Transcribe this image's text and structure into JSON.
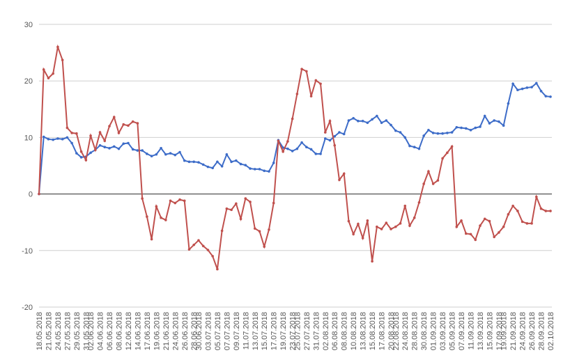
{
  "chart_data": {
    "type": "line",
    "categories": [
      "18.05.2018",
      null,
      "21.05.2018",
      null,
      "24.05.2018",
      null,
      "27.05.2018",
      null,
      "29.05.2018",
      null,
      "31.05.2018",
      "02.06.2018",
      null,
      "04.06.2018",
      null,
      "06.06.2018",
      null,
      "08.06.2018",
      null,
      "12.06.2018",
      null,
      "14.06.2018",
      null,
      "17.06.2018",
      null,
      "19.06.2018",
      null,
      "21.06.2018",
      null,
      "24.06.2018",
      null,
      "26.06.2018",
      null,
      "28.06.2018",
      "30.06.2018",
      null,
      "03.07.2018",
      null,
      "05.07.2018",
      null,
      "07.07.2018",
      null,
      "09.07.2018",
      null,
      "11.07.2018",
      null,
      "13.07.2018",
      null,
      "15.07.2018",
      null,
      "17.07.2018",
      null,
      "19.07.2018",
      null,
      "23.07.2018",
      "25.07.2018",
      null,
      "27.07.2018",
      null,
      "31.07.2018",
      null,
      "02.08.2018",
      null,
      "06.08.2018",
      null,
      "08.08.2018",
      null,
      "10.08.2018",
      null,
      "13.08.2018",
      null,
      "15.08.2018",
      null,
      "17.08.2018",
      null,
      "20.08.2018",
      "22.08.2018",
      null,
      "24.08.2018",
      null,
      "28.08.2018",
      null,
      "30.08.2018",
      null,
      "01.09.2018",
      null,
      "03.09.2018",
      null,
      "05.09.2018",
      null,
      "07.09.2018",
      null,
      "11.09.2018",
      null,
      "13.09.2018",
      null,
      "15.09.2018",
      null,
      "17.09.2018",
      "19.09.2018",
      null,
      "21.09.2018",
      null,
      "24.09.2018",
      null,
      "26.09.2018",
      null,
      "28.09.2018",
      null,
      "02.10.2018"
    ],
    "series": [
      {
        "color": "#3d6cc8",
        "values": [
          0,
          10.1,
          9.7,
          9.6,
          9.8,
          9.7,
          10,
          9,
          7.2,
          6.5,
          6.6,
          7.3,
          7.8,
          8.6,
          8.3,
          8.1,
          8.4,
          8,
          8.9,
          9,
          7.9,
          7.7,
          7.7,
          7.1,
          6.7,
          7,
          8.1,
          7,
          7.2,
          6.9,
          7.4,
          5.9,
          5.7,
          5.7,
          5.6,
          5.2,
          4.8,
          4.6,
          5.7,
          4.9,
          7,
          5.7,
          5.9,
          5.3,
          5.1,
          4.5,
          4.4,
          4.4,
          4.1,
          4,
          5.5,
          9.5,
          8.2,
          8,
          7.6,
          8,
          9.1,
          8.3,
          7.9,
          7.1,
          7.1,
          9.8,
          9.5,
          10.2,
          10.9,
          10.6,
          13,
          13.4,
          12.9,
          12.9,
          12.6,
          13.2,
          13.8,
          12.6,
          13,
          12.2,
          11.2,
          10.9,
          10,
          8.5,
          8.3,
          8,
          10.3,
          11.3,
          10.8,
          10.7,
          10.7,
          10.8,
          10.9,
          11.8,
          11.7,
          11.6,
          11.3,
          11.7,
          11.9,
          13.8,
          12.5,
          13,
          12.8,
          12.1,
          16,
          19.5,
          18.4,
          18.6,
          18.8,
          18.9,
          19.6,
          18.2,
          17.3,
          17.2
        ]
      },
      {
        "color": "#c0504d",
        "values": [
          0,
          22,
          20.5,
          21.3,
          26,
          23.7,
          11.7,
          10.8,
          10.7,
          7.5,
          6,
          10.3,
          7.8,
          10.9,
          9.4,
          12,
          13.6,
          10.8,
          12.3,
          12.1,
          12.8,
          12.5,
          -0.8,
          -4,
          -8,
          -2.2,
          -4.2,
          -4.6,
          -1.2,
          -1.6,
          -1,
          -1.2,
          -9.8,
          -9,
          -8.2,
          -9.2,
          -9.9,
          -11,
          -13.3,
          -6.5,
          -2.6,
          -2.8,
          -1.7,
          -4.4,
          -0.8,
          -1.4,
          -6.1,
          -6.6,
          -9.3,
          -6.3,
          -1.6,
          9.4,
          7.5,
          9.3,
          13.3,
          17.7,
          22.1,
          21.7,
          17.3,
          20.1,
          19.5,
          10.9,
          12.9,
          8.6,
          2.5,
          3.6,
          -4.8,
          -7.1,
          -5.3,
          -7.8,
          -4.7,
          -11.9,
          -5.8,
          -6.2,
          -5.1,
          -6.2,
          -5.8,
          -5.2,
          -2.1,
          -5.6,
          -4.2,
          -1.5,
          1.8,
          4,
          1.8,
          2.4,
          6.3,
          7.3,
          8.4,
          -5.8,
          -4.7,
          -7,
          -7.1,
          -8.1,
          -5.6,
          -4.4,
          -4.8,
          -7.6,
          -6.8,
          -5.8,
          -3.6,
          -2.1,
          -3,
          -4.9,
          -5.2,
          -5.2,
          -0.5,
          -2.6,
          -3,
          -3
        ]
      }
    ],
    "ylim": [
      -20,
      30
    ],
    "yticks": [
      -20,
      -10,
      0,
      10,
      20,
      30
    ],
    "grid": true
  }
}
